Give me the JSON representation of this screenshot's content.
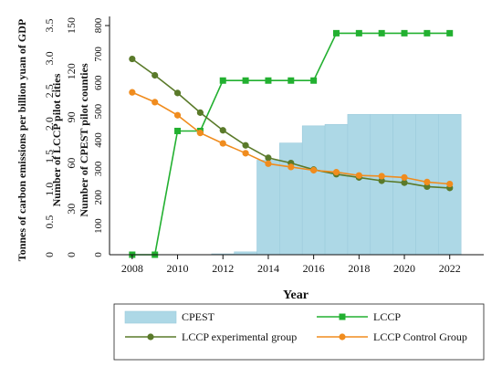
{
  "chart_data": {
    "type": "line",
    "xlabel": "Year",
    "x": [
      2008,
      2009,
      2010,
      2011,
      2012,
      2013,
      2014,
      2015,
      2016,
      2017,
      2018,
      2019,
      2020,
      2021,
      2022
    ],
    "xticks": [
      2008,
      2010,
      2012,
      2014,
      2016,
      2018,
      2020,
      2022
    ],
    "xlim": [
      2007,
      2023.5
    ],
    "axes": [
      {
        "id": "gdp",
        "label": "Tonnes of carbon emissions per billion yuan of GDP",
        "ylim": [
          0,
          3.5
        ],
        "ticks": [
          "0",
          "0.5",
          "1.0",
          "1.5",
          "2.0",
          "2.5",
          "3.0",
          "3.5"
        ]
      },
      {
        "id": "lccp",
        "label": "Number of LCCP pilot cities",
        "ylim": [
          0,
          150
        ],
        "ticks": [
          "0",
          "30",
          "60",
          "90",
          "120",
          "150"
        ]
      },
      {
        "id": "cpest",
        "label": "Number of CPEST pilot counties",
        "ylim": [
          0,
          800
        ],
        "ticks": [
          "0",
          "100",
          "200",
          "300",
          "400",
          "500",
          "600",
          "700",
          "800"
        ]
      }
    ],
    "series": [
      {
        "name": "CPEST",
        "type": "area",
        "axis": "cpest",
        "color": "#add8e6",
        "values": [
          0,
          0,
          0,
          0,
          3,
          10,
          330,
          390,
          450,
          455,
          490,
          490,
          490,
          490,
          490
        ]
      },
      {
        "name": "LCCP",
        "type": "line",
        "axis": "lccp",
        "color": "#22b030",
        "marker": "square",
        "values": [
          0,
          0,
          81,
          81,
          114,
          114,
          114,
          114,
          114,
          145,
          145,
          145,
          145,
          145,
          145
        ]
      },
      {
        "name": "LCCP experimental group",
        "type": "line",
        "axis": "gdp",
        "color": "#5a7a2a",
        "marker": "circle",
        "values": [
          2.99,
          2.74,
          2.47,
          2.17,
          1.9,
          1.67,
          1.48,
          1.4,
          1.3,
          1.23,
          1.18,
          1.13,
          1.1,
          1.04,
          1.02
        ]
      },
      {
        "name": "LCCP Control Group",
        "type": "line",
        "axis": "gdp",
        "color": "#f08c1e",
        "marker": "circle",
        "values": [
          2.48,
          2.33,
          2.13,
          1.86,
          1.7,
          1.55,
          1.39,
          1.34,
          1.29,
          1.26,
          1.21,
          1.2,
          1.18,
          1.11,
          1.08
        ]
      }
    ],
    "legend": {
      "position": "bottom",
      "columns": 2
    },
    "grid": false
  }
}
